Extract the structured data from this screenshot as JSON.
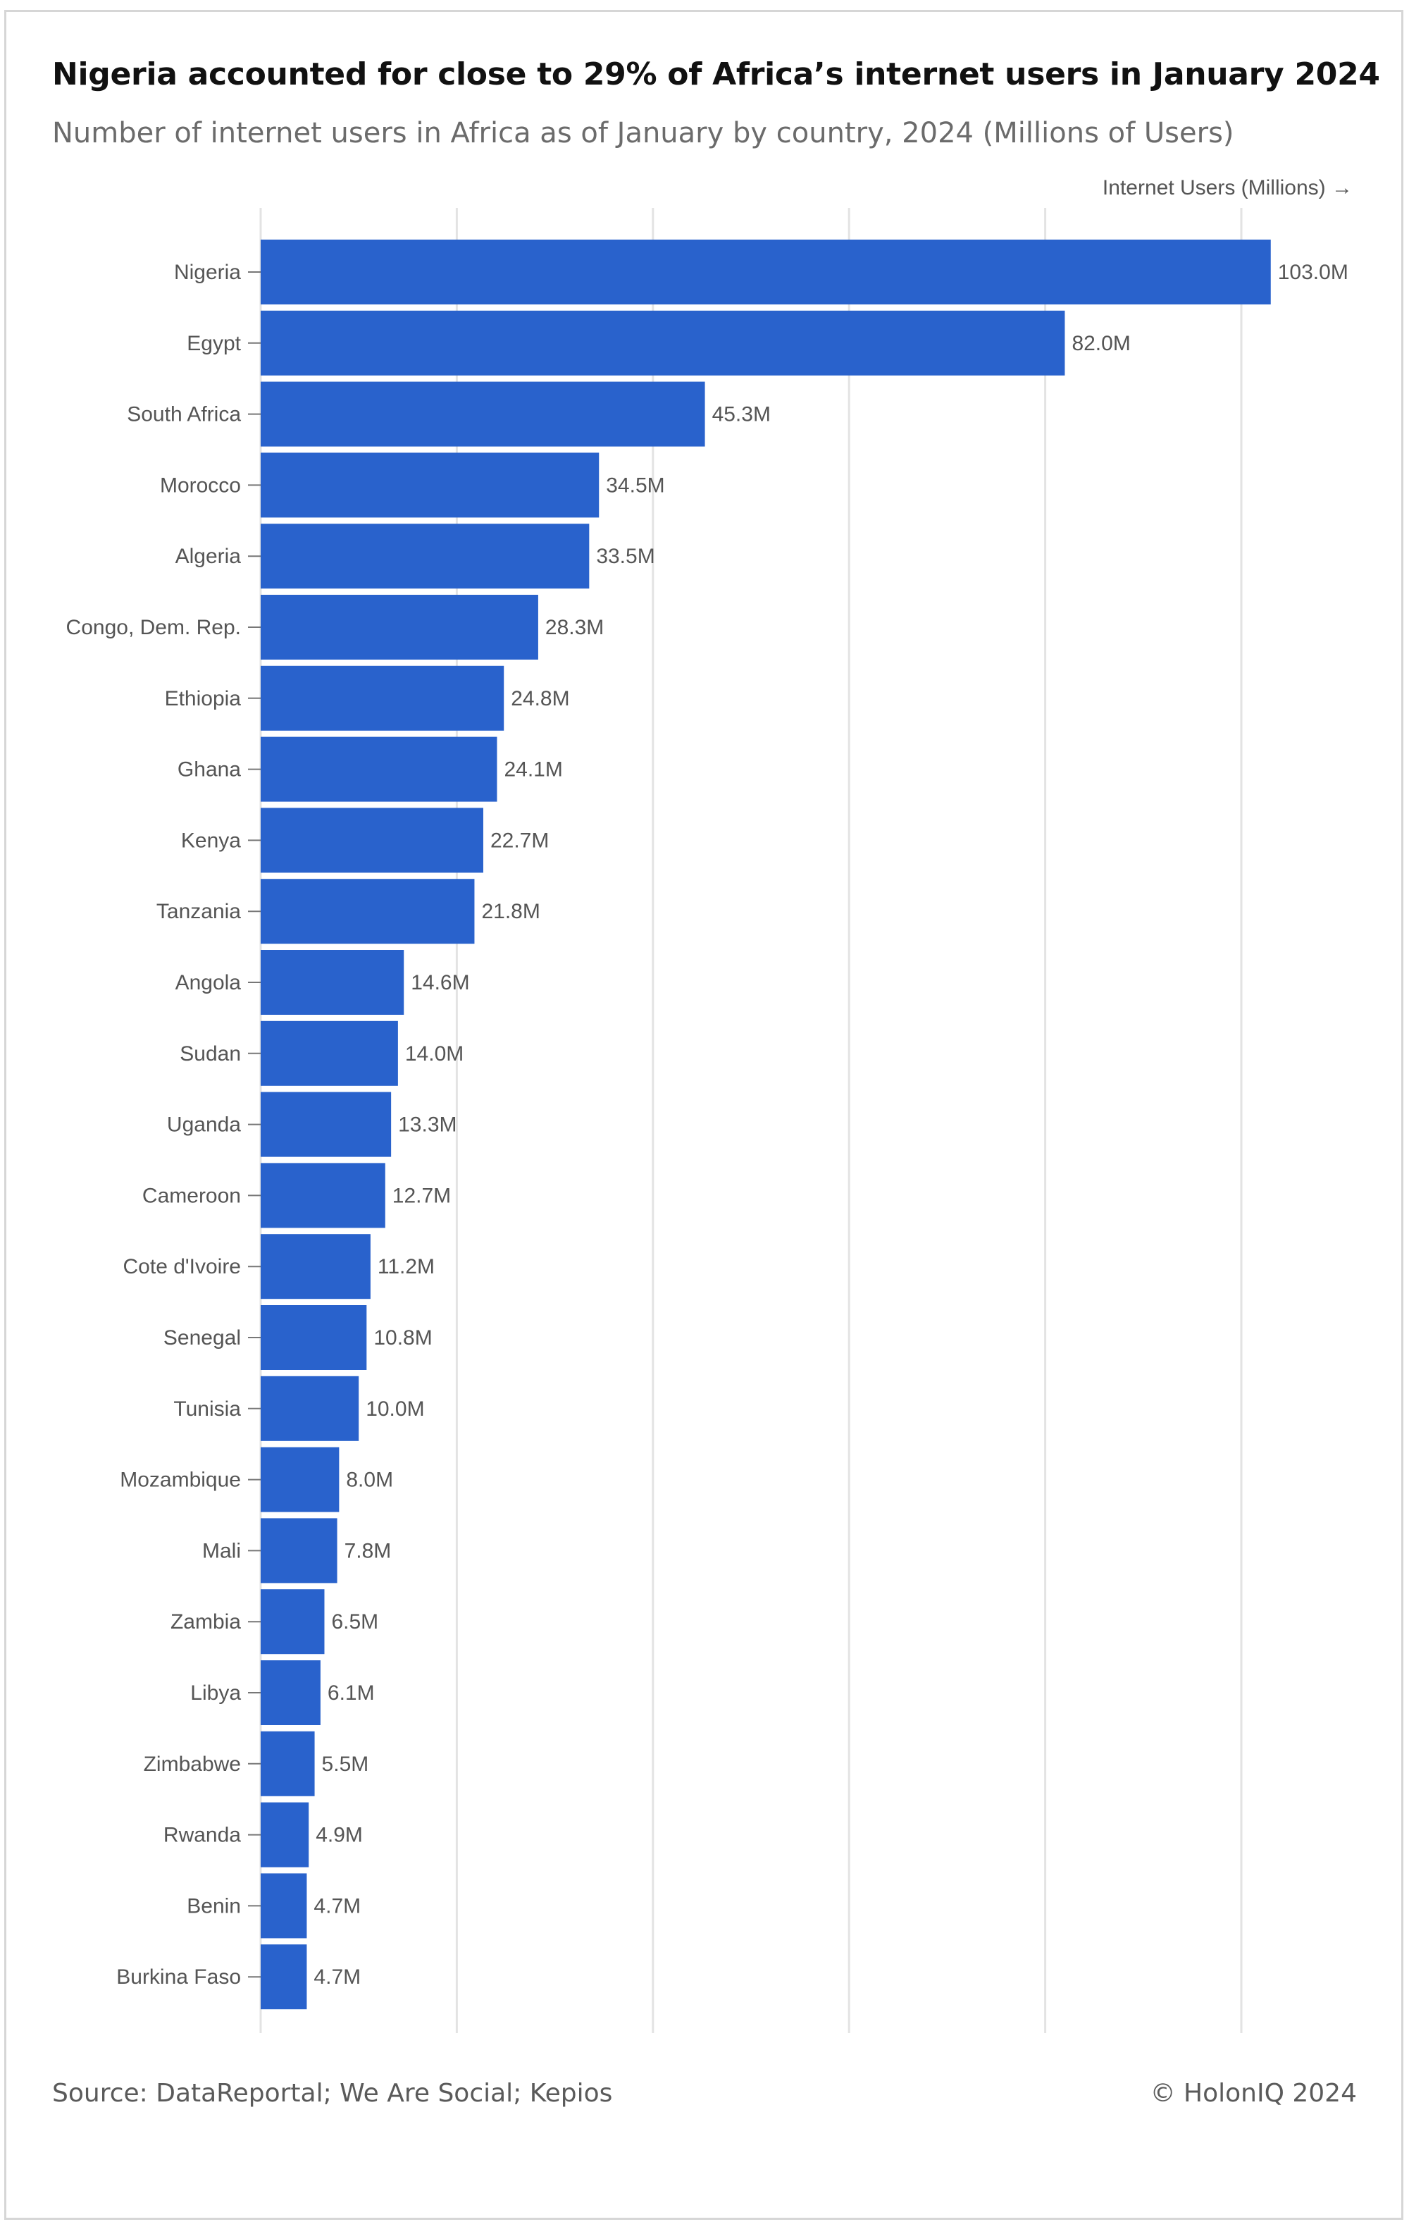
{
  "title": "Nigeria accounted for close to 29% of Africa’s internet users in January 2024",
  "subtitle": "Number of internet users in Africa as of January by country, 2024 (Millions of Users)",
  "axis_title": "Internet Users (Millions) →",
  "source": "Source: DataReportal; We Are Social; Kepios",
  "copyright": "© HolonIQ 2024",
  "colors": {
    "bar": "#2962cc",
    "grid": "#e3e3e3",
    "label": "#555555"
  },
  "chart_data": {
    "type": "bar",
    "orientation": "horizontal",
    "title": "Nigeria accounted for close to 29% of Africa’s internet users in January 2024",
    "subtitle": "Number of internet users in Africa as of January by country, 2024 (Millions of Users)",
    "xlabel": "Internet Users (Millions) →",
    "ylabel": "",
    "xlim": [
      0,
      105
    ],
    "grid": true,
    "categories": [
      "Nigeria",
      "Egypt",
      "South Africa",
      "Morocco",
      "Algeria",
      "Congo, Dem. Rep.",
      "Ethiopia",
      "Ghana",
      "Kenya",
      "Tanzania",
      "Angola",
      "Sudan",
      "Uganda",
      "Cameroon",
      "Cote d'Ivoire",
      "Senegal",
      "Tunisia",
      "Mozambique",
      "Mali",
      "Zambia",
      "Libya",
      "Zimbabwe",
      "Rwanda",
      "Benin",
      "Burkina Faso"
    ],
    "values": [
      103.0,
      82.0,
      45.3,
      34.5,
      33.5,
      28.3,
      24.8,
      24.1,
      22.7,
      21.8,
      14.6,
      14.0,
      13.3,
      12.7,
      11.2,
      10.8,
      10.0,
      8.0,
      7.8,
      6.5,
      6.1,
      5.5,
      4.9,
      4.7,
      4.7
    ],
    "value_labels": [
      "103.0M",
      "82.0M",
      "45.3M",
      "34.5M",
      "33.5M",
      "28.3M",
      "24.8M",
      "24.1M",
      "22.7M",
      "21.8M",
      "14.6M",
      "14.0M",
      "13.3M",
      "12.7M",
      "11.2M",
      "10.8M",
      "10.0M",
      "8.0M",
      "7.8M",
      "6.5M",
      "6.1M",
      "5.5M",
      "4.9M",
      "4.7M",
      "4.7M"
    ]
  }
}
